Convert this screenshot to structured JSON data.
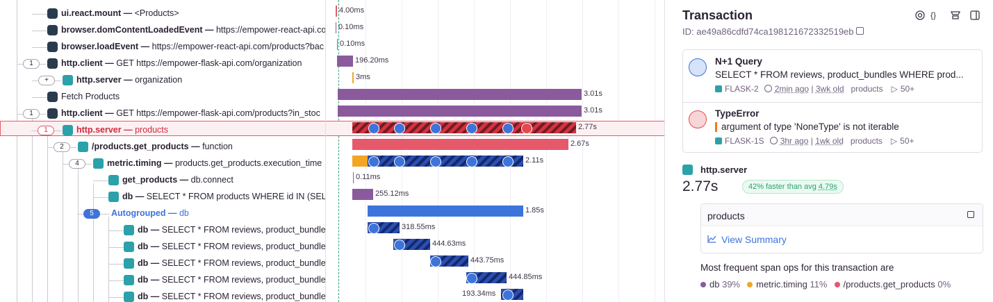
{
  "separator": "—",
  "rows": [
    {
      "op": "ui.react.mount",
      "description": "<Products>",
      "duration": "4.00ms"
    },
    {
      "op": "browser.domContentLoadedEvent",
      "description": "https://empower-react-api.co",
      "duration": "0.10ms"
    },
    {
      "op": "browser.loadEvent",
      "description": "https://empower-react-api.com/products?bac",
      "duration": "0.10ms"
    },
    {
      "count": "1",
      "op": "http.client",
      "description": "GET https://empower-flask-api.com/organization",
      "duration": "196.20ms"
    },
    {
      "count": "+",
      "op": "http.server",
      "description": "organization",
      "duration": "3ms"
    },
    {
      "label": "Fetch Products",
      "duration": "3.01s"
    },
    {
      "count": "1",
      "op": "http.client",
      "description": "GET https://empower-flask-api.com/products?in_stoc",
      "duration": "3.01s"
    },
    {
      "count": "1",
      "op": "http.server",
      "description": "products",
      "duration": "2.77s"
    },
    {
      "count": "2",
      "op": "/products.get_products",
      "description": "function",
      "duration": "2.67s"
    },
    {
      "count": "4",
      "op": "metric.timing",
      "description": "products.get_products.execution_time",
      "duration": "2.11s"
    },
    {
      "op": "get_products",
      "description": "db.connect",
      "duration": "0.11ms"
    },
    {
      "op": "db",
      "description": "SELECT * FROM products WHERE id IN (SELECT",
      "duration": "255.12ms"
    },
    {
      "count": "5",
      "op": "Autogrouped",
      "description": "db",
      "duration": "1.85s"
    },
    {
      "op": "db",
      "description": "SELECT * FROM reviews, product_bundles",
      "duration": "318.55ms"
    },
    {
      "op": "db",
      "description": "SELECT * FROM reviews, product_bundles",
      "duration": "444.63ms"
    },
    {
      "op": "db",
      "description": "SELECT * FROM reviews, product_bundles",
      "duration": "443.75ms"
    },
    {
      "op": "db",
      "description": "SELECT * FROM reviews, product_bundles",
      "duration": "444.85ms"
    },
    {
      "op": "db",
      "description": "SELECT * FROM reviews, product_bundles",
      "duration": "193.34ms"
    }
  ],
  "panel": {
    "title": "Transaction",
    "id": "ID: ae49a86cdfd74ca198121672332519eb",
    "issues": [
      {
        "title": "N+1 Query",
        "message": "SELECT * FROM reviews, product_bundles WHERE prod...",
        "short_id": "FLASK-2",
        "last_seen": "2min ago",
        "first_seen": "3wk old",
        "transaction": "products",
        "events": "50+"
      },
      {
        "title": "TypeError",
        "message": "argument of type 'NoneType' is not iterable",
        "short_id": "FLASK-1S",
        "last_seen": "3hr ago",
        "first_seen": "1wk old",
        "transaction": "products",
        "events": "50+"
      }
    ],
    "span_op": "http.server",
    "span_duration": "2.77s",
    "comparison": "42% faster than avg",
    "avg": "4.79s",
    "span_name": "products",
    "summary_link": "View Summary",
    "ops_heading": "Most frequent span ops for this transaction are",
    "ops": [
      {
        "name": "db",
        "share": "39%",
        "color": "#8b5a9c"
      },
      {
        "name": "metric.timing",
        "share": "11%",
        "color": "#f2a623"
      },
      {
        "name": "/products.get_products",
        "share": "0%",
        "color": "#e5596b"
      }
    ]
  }
}
